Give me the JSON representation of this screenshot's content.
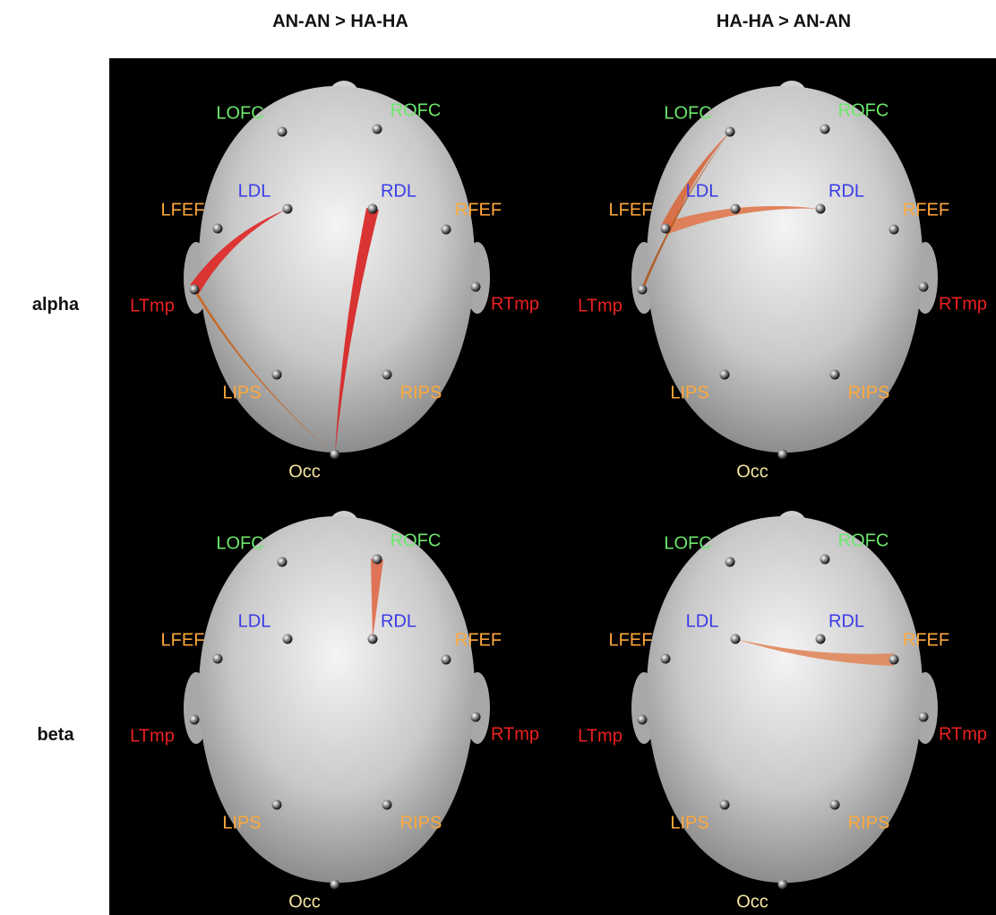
{
  "column_headers": [
    "AN-AN > HA-HA",
    "HA-HA > AN-AN"
  ],
  "row_labels": [
    "alpha",
    "beta"
  ],
  "panels": [
    {
      "nodes": [
        "LOFC",
        "ROFC",
        "LDL",
        "RDL",
        "LFEF",
        "RFEF",
        "LTmp",
        "RTmp",
        "LIPS",
        "RIPS",
        "Occ"
      ]
    },
    {
      "nodes": [
        "LOFC",
        "ROFC",
        "LDL",
        "RDL",
        "LFEF",
        "RFEF",
        "LTmp",
        "RTmp",
        "LIPS",
        "RIPS",
        "Occ"
      ]
    },
    {
      "nodes": [
        "LOFC",
        "ROFC",
        "LDL",
        "RDL",
        "LFEF",
        "RFEF",
        "LTmp",
        "RTmp",
        "LIPS",
        "RIPS",
        "Occ"
      ]
    },
    {
      "nodes": [
        "LOFC",
        "ROFC",
        "LDL",
        "RDL",
        "LFEF",
        "RFEF",
        "LTmp",
        "RTmp",
        "LIPS",
        "RIPS",
        "Occ"
      ]
    }
  ]
}
